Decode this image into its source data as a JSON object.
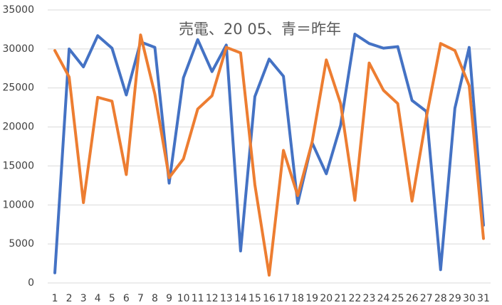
{
  "chart_data": {
    "type": "line",
    "title": "売電、20 05、青＝昨年",
    "categories": [
      1,
      2,
      3,
      4,
      5,
      6,
      7,
      8,
      9,
      10,
      11,
      12,
      13,
      14,
      15,
      16,
      17,
      18,
      19,
      20,
      21,
      22,
      23,
      24,
      25,
      26,
      27,
      28,
      29,
      30,
      31
    ],
    "series": [
      {
        "color": "#4472c4",
        "values": [
          1300,
          30000,
          27700,
          31700,
          30100,
          24100,
          30900,
          30200,
          12800,
          26300,
          31200,
          27100,
          30500,
          4100,
          23900,
          28700,
          26500,
          10200,
          18000,
          14000,
          20200,
          31900,
          30700,
          30100,
          30300,
          23400,
          22000,
          1700,
          22400,
          30200,
          7400
        ]
      },
      {
        "color": "#ed7d31",
        "values": [
          29800,
          26400,
          10300,
          23800,
          23300,
          13900,
          31800,
          24200,
          13500,
          15900,
          22300,
          24000,
          30200,
          29500,
          12600,
          1000,
          17000,
          11200,
          18000,
          28600,
          23000,
          10600,
          28200,
          24700,
          23000,
          10500,
          21200,
          30700,
          29800,
          25300,
          5700
        ]
      }
    ],
    "ylim": [
      0,
      35000
    ],
    "yticks": [
      0,
      5000,
      10000,
      15000,
      20000,
      25000,
      30000,
      35000
    ],
    "grid": true
  }
}
